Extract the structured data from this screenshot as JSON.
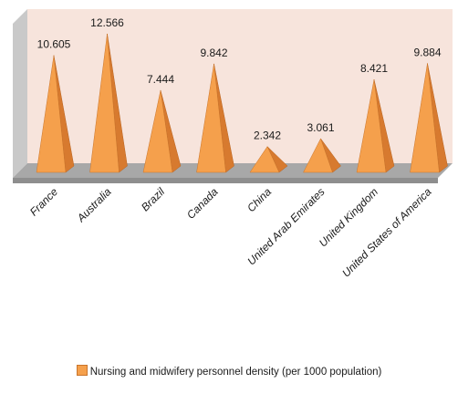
{
  "chart_data": {
    "type": "bar",
    "style": "3d-pyramid",
    "categories": [
      "France",
      "Australia",
      "Brazil",
      "Canada",
      "China",
      "United Arab Emirates",
      "United Kingdom",
      "United States of America"
    ],
    "series": [
      {
        "name": "Nursing and midwifery personnel density (per 1000 population)",
        "values": [
          10.605,
          12.566,
          7.444,
          9.842,
          2.342,
          3.061,
          8.421,
          9.884
        ],
        "labels": [
          "10.605",
          "12.566",
          "7.444",
          "9.842",
          "2.342",
          "3.061",
          "8.421",
          "9.884"
        ]
      }
    ],
    "ylim": [
      0,
      13
    ],
    "grid": false,
    "legend_position": "bottom",
    "colors": {
      "pyramid_front": "#f5a04c",
      "pyramid_side": "#d77a2f",
      "plot_back_wall": "#f7e4dc",
      "floor": "#a8a8a8"
    }
  }
}
